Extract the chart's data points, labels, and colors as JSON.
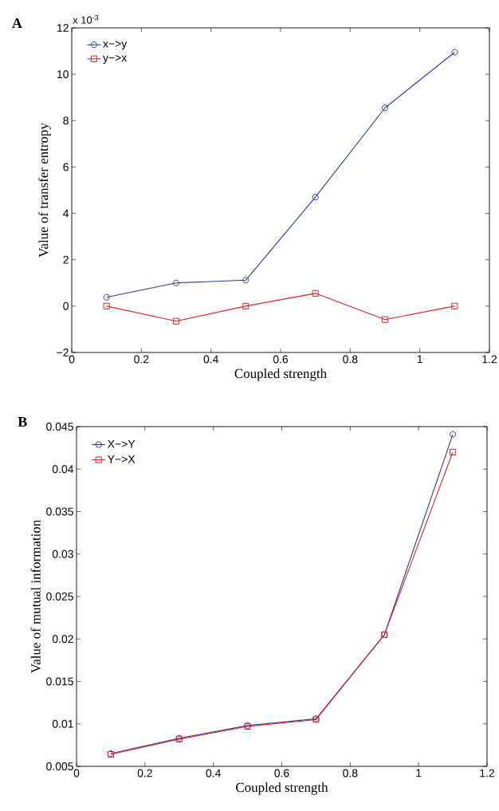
{
  "chart_data": [
    {
      "type": "line",
      "title": "A",
      "xlabel": "Coupled strength",
      "ylabel": "Value of transfer entropy",
      "annotations": [
        "x 10$^{-3}$"
      ],
      "x": [
        0.1,
        0.3,
        0.5,
        0.7,
        0.9,
        1.1
      ],
      "series": [
        {
          "name": "x−>y",
          "color": "#2b3a9e",
          "marker": "circle",
          "values": [
            0.38,
            1.0,
            1.12,
            4.7,
            8.55,
            10.95
          ]
        },
        {
          "name": "y−>x",
          "color": "#e02424",
          "marker": "square",
          "values": [
            0,
            -0.65,
            0,
            0.55,
            -0.58,
            0
          ]
        }
      ],
      "xlim": [
        0,
        1.2
      ],
      "ylim": [
        -2,
        12
      ],
      "xticks": [
        0,
        0.2,
        0.4,
        0.6,
        0.8,
        1,
        1.2
      ],
      "yticks": [
        {
          "value": -2,
          "label": "−2"
        },
        0,
        2,
        4,
        6,
        8,
        10,
        12
      ],
      "legend": "top left"
    },
    {
      "type": "line",
      "title": "B",
      "xlabel": "Coupled strength",
      "ylabel": "Value of mutual information",
      "x": [
        0.1,
        0.3,
        0.5,
        0.7,
        0.9,
        1.1
      ],
      "series": [
        {
          "name": "X−>Y",
          "color": "#2b3a9e",
          "marker": "circle",
          "values": [
            0.0065,
            0.0083,
            0.0098,
            0.0106,
            0.0205,
            0.0441
          ]
        },
        {
          "name": "Y−>X",
          "color": "#e02424",
          "marker": "square",
          "values": [
            0.0064,
            0.0082,
            0.0097,
            0.0105,
            0.0205,
            0.042
          ]
        }
      ],
      "xlim": [
        0,
        1.2
      ],
      "ylim": [
        0.005,
        0.045
      ],
      "xticks": [
        0,
        0.2,
        0.4,
        0.6,
        0.8,
        1,
        1.2
      ],
      "yticks": [
        0.005,
        0.01,
        0.015,
        0.02,
        0.025,
        0.03,
        0.035,
        0.04,
        0.045
      ],
      "legend": "top left"
    }
  ]
}
